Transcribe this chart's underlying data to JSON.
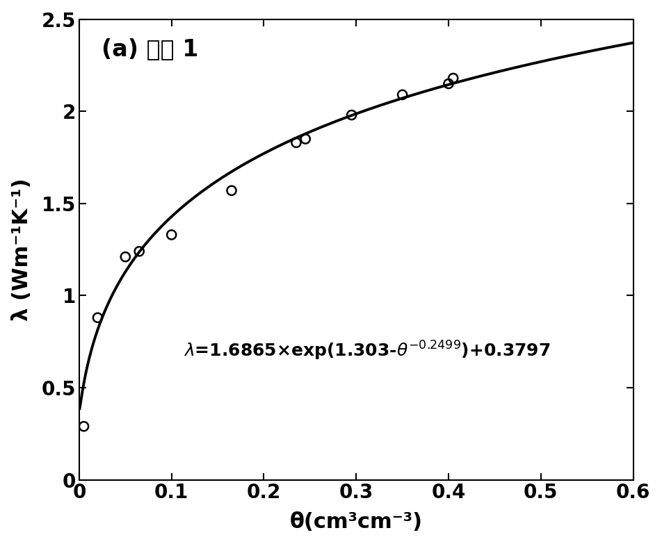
{
  "scatter_x": [
    0.005,
    0.02,
    0.05,
    0.065,
    0.1,
    0.165,
    0.235,
    0.245,
    0.295,
    0.35,
    0.4,
    0.405
  ],
  "scatter_y": [
    0.29,
    0.88,
    1.21,
    1.24,
    1.33,
    1.57,
    1.83,
    1.85,
    1.98,
    2.09,
    2.15,
    2.18
  ],
  "xlim": [
    0,
    0.6
  ],
  "ylim": [
    0,
    2.5
  ],
  "xticks": [
    0,
    0.1,
    0.2,
    0.3,
    0.4,
    0.5,
    0.6
  ],
  "yticks": [
    0,
    0.5,
    1.0,
    1.5,
    2.0,
    2.5
  ],
  "xlabel": "θ(cm³cm⁻³)",
  "ylabel": "λ (Wm⁻¹K⁻¹)",
  "label_text": "(a) 土壤 1",
  "curve_params": {
    "a": 1.6865,
    "b": 1.303,
    "c": -0.2499,
    "d": 0.3797
  },
  "line_color": "#000000",
  "scatter_color": "none",
  "scatter_edge_color": "#000000",
  "background_color": "#ffffff",
  "panel_fontsize": 24,
  "label_fontsize": 22,
  "tick_fontsize": 20,
  "equation_fontsize": 18,
  "scatter_size": 90,
  "line_width": 2.8
}
